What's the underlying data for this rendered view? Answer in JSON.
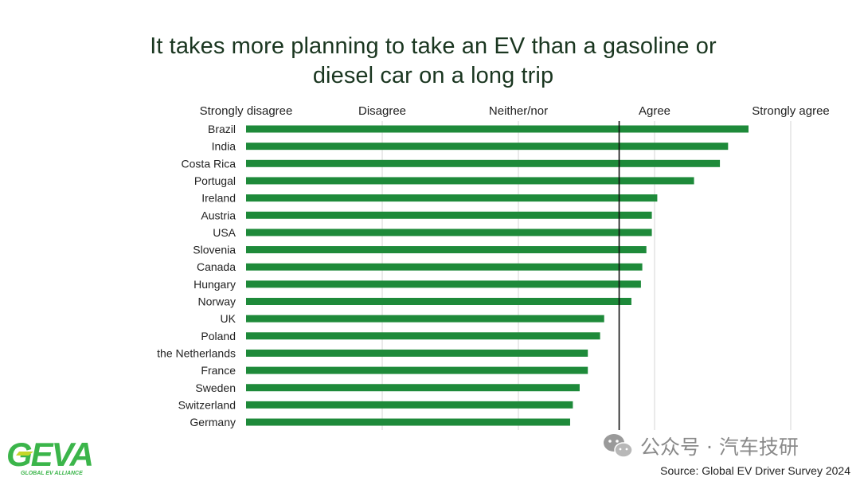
{
  "chart_data": {
    "type": "bar",
    "orientation": "horizontal",
    "title": "It takes more planning to take an EV than a gasoline or diesel car on a long trip",
    "title_lines": [
      "It takes more planning to take an EV than a gasoline or",
      "diesel car on a long trip"
    ],
    "scale_labels": [
      "Strongly disagree",
      "Disagree",
      "Neither/nor",
      "Agree",
      "Strongly agree"
    ],
    "xlim": [
      1,
      5
    ],
    "grid": true,
    "reference_line": 3.74,
    "categories": [
      "Brazil",
      "India",
      "Costa Rica",
      "Portugal",
      "Ireland",
      "Austria",
      "USA",
      "Slovenia",
      "Canada",
      "Hungary",
      "Norway",
      "UK",
      "Poland",
      "the Netherlands",
      "France",
      "Sweden",
      "Switzerland",
      "Germany"
    ],
    "values": [
      4.69,
      4.54,
      4.48,
      4.29,
      4.02,
      3.98,
      3.98,
      3.94,
      3.91,
      3.9,
      3.83,
      3.63,
      3.6,
      3.51,
      3.51,
      3.45,
      3.4,
      3.38
    ]
  },
  "colors": {
    "bar": "#1e8a3a",
    "reference_line": "#111111",
    "grid": "#d6d6d6",
    "title": "#1a3620",
    "logo_green": "#3bb54a",
    "logo_yellow": "#c5d62a"
  },
  "logo": {
    "wordmark": "GEVA",
    "tagline": "GLOBAL EV ALLIANCE"
  },
  "watermark": {
    "text": "公众号 · 汽车技研",
    "icon": "wechat-icon"
  },
  "source": "Source: Global EV Driver Survey 2024"
}
